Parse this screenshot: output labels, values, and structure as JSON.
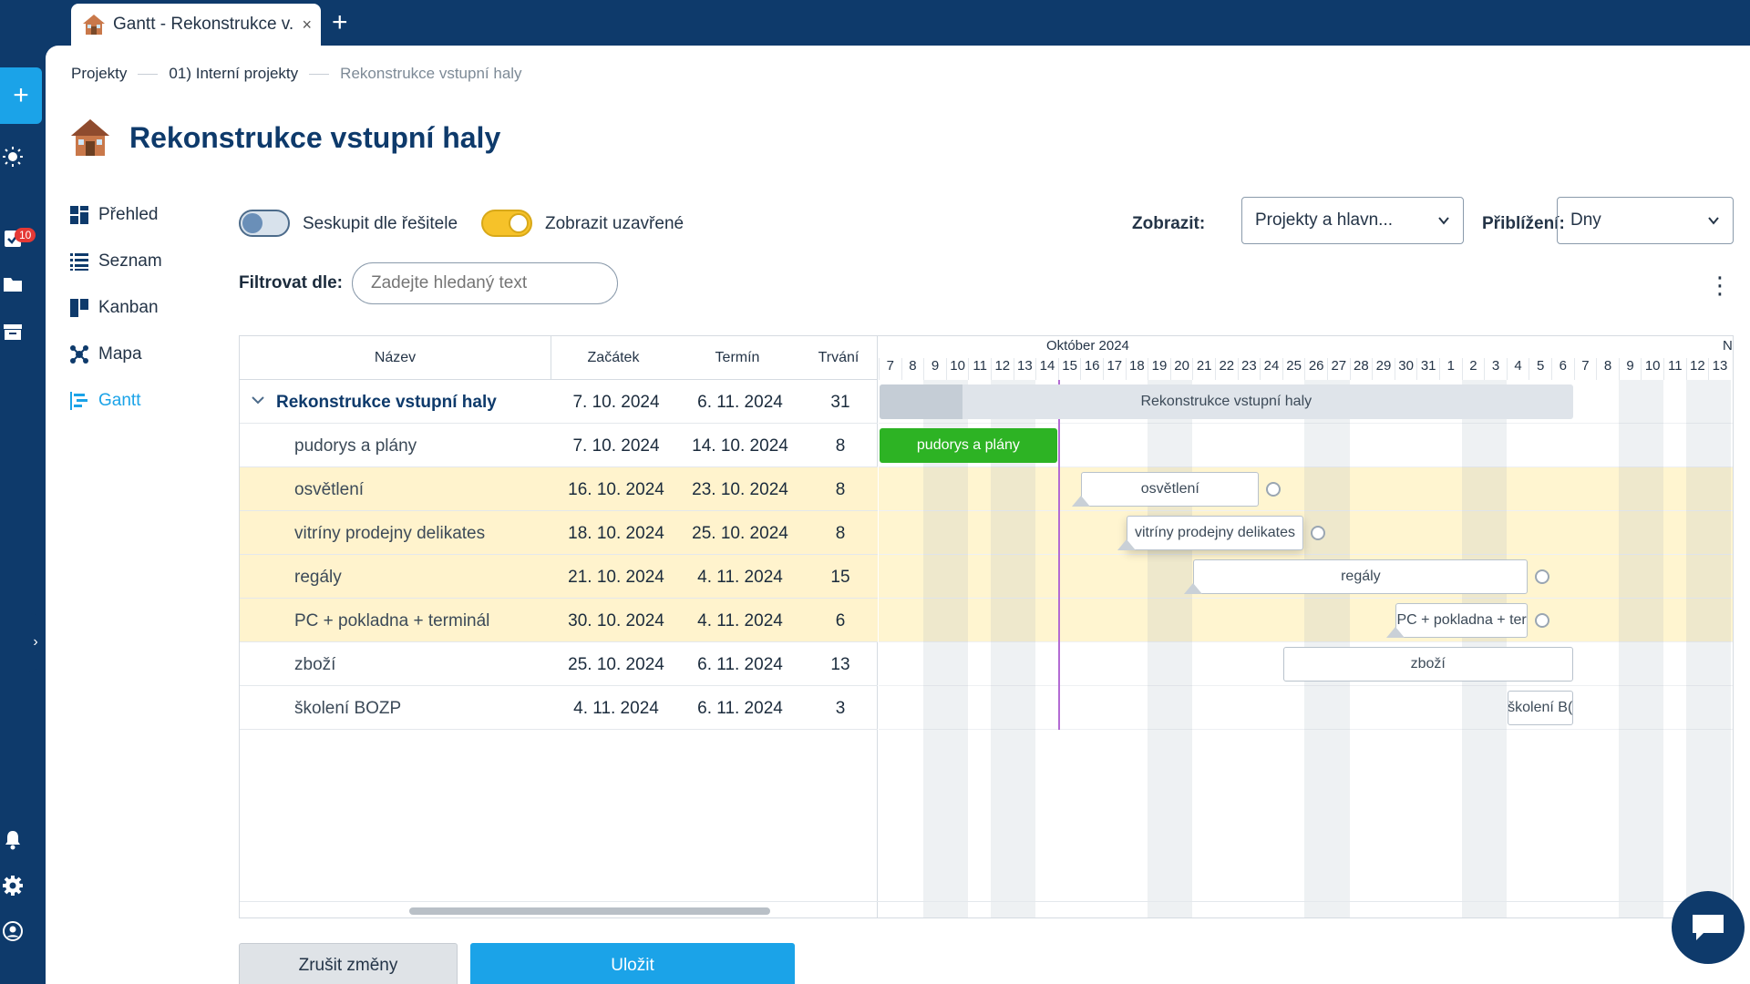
{
  "browser_tab": {
    "title": "Gantt - Rekonstrukce v.",
    "icon": "house-icon",
    "close": "×",
    "new_tab": "+"
  },
  "rail": {
    "add_label": "+",
    "items": [
      {
        "icon": "sun-icon"
      },
      {
        "icon": "tasks-icon",
        "badge": "10"
      },
      {
        "icon": "folder-icon"
      },
      {
        "icon": "archive-icon"
      },
      {
        "icon": "bell-icon"
      },
      {
        "icon": "gear-icon"
      },
      {
        "icon": "user-icon"
      }
    ],
    "collapse_label": "›"
  },
  "breadcrumb": [
    "Projekty",
    "01) Interní projekty",
    "Rekonstrukce vstupní haly"
  ],
  "page_title": "Rekonstrukce vstupní haly",
  "side_nav": [
    {
      "label": "Přehled",
      "icon": "overview-icon",
      "active": false
    },
    {
      "label": "Seznam",
      "icon": "list-icon",
      "active": false
    },
    {
      "label": "Kanban",
      "icon": "kanban-icon",
      "active": false
    },
    {
      "label": "Mapa",
      "icon": "map-icon",
      "active": false
    },
    {
      "label": "Gantt",
      "icon": "gantt-icon",
      "active": true
    }
  ],
  "controls": {
    "group_by_assignee": {
      "label": "Seskupit dle řešitele",
      "on": false
    },
    "show_closed": {
      "label": "Zobrazit uzavřené",
      "on": true
    },
    "show_label": "Zobrazit:",
    "show_value": "Projekty a hlavn...",
    "zoom_label": "Přiblížení:",
    "zoom_value": "Dny",
    "filter_label": "Filtrovat dle:",
    "filter_placeholder": "Zadejte hledaný text",
    "more_label": "⋮"
  },
  "table": {
    "columns": [
      "Název",
      "Začátek",
      "Termín",
      "Trvání"
    ],
    "rows": [
      {
        "name": "Rekonstrukce vstupní haly",
        "start": "7. 10. 2024",
        "end": "6. 11. 2024",
        "duration": "31",
        "parent": true,
        "highlight": false
      },
      {
        "name": "pudorys a plány",
        "start": "7. 10. 2024",
        "end": "14. 10. 2024",
        "duration": "8",
        "parent": false,
        "highlight": false
      },
      {
        "name": "osvětlení",
        "start": "16. 10. 2024",
        "end": "23. 10. 2024",
        "duration": "8",
        "parent": false,
        "highlight": true
      },
      {
        "name": "vitríny prodejny delikates",
        "start": "18. 10. 2024",
        "end": "25. 10. 2024",
        "duration": "8",
        "parent": false,
        "highlight": true
      },
      {
        "name": "regály",
        "start": "21. 10. 2024",
        "end": "4. 11. 2024",
        "duration": "15",
        "parent": false,
        "highlight": true
      },
      {
        "name": "PC + pokladna + terminál",
        "start": "30. 10. 2024",
        "end": "4. 11. 2024",
        "duration": "6",
        "parent": false,
        "highlight": true
      },
      {
        "name": "zboží",
        "start": "25. 10. 2024",
        "end": "6. 11. 2024",
        "duration": "13",
        "parent": false,
        "highlight": false
      },
      {
        "name": "školení BOZP",
        "start": "4. 11. 2024",
        "end": "6. 11. 2024",
        "duration": "3",
        "parent": false,
        "highlight": false
      }
    ]
  },
  "timeline": {
    "month_label": "Október 2024",
    "next_month_label": "N",
    "days": [
      "7",
      "8",
      "9",
      "10",
      "11",
      "12",
      "13",
      "14",
      "15",
      "16",
      "17",
      "18",
      "19",
      "20",
      "21",
      "22",
      "23",
      "24",
      "25",
      "26",
      "27",
      "28",
      "29",
      "30",
      "31",
      "1",
      "2",
      "3",
      "4",
      "5",
      "6",
      "7",
      "8",
      "9",
      "10",
      "11",
      "12",
      "13"
    ],
    "weekend_days": [
      "12",
      "13",
      "19",
      "20",
      "26",
      "27",
      "2",
      "3",
      "9",
      "10"
    ],
    "today_after_day": "15",
    "bars": [
      {
        "label": "Rekonstrukce vstupní haly",
        "start_day": 0,
        "days": 31,
        "style": "summary",
        "progress": 0.12
      },
      {
        "label": "pudorys a plány",
        "start_day": 0,
        "days": 8,
        "style": "green"
      },
      {
        "label": "osvětlení",
        "start_day": 9,
        "days": 8,
        "style": "task"
      },
      {
        "label": "vitríny prodejny delikates",
        "start_day": 11,
        "days": 8,
        "style": "task",
        "hover": true
      },
      {
        "label": "regály",
        "start_day": 14,
        "days": 15,
        "style": "task"
      },
      {
        "label": "PC + pokladna + ter",
        "start_day": 23,
        "days": 6,
        "style": "task"
      },
      {
        "label": "zboží",
        "start_day": 18,
        "days": 13,
        "style": "task"
      },
      {
        "label": "školení B(",
        "start_day": 28,
        "days": 3,
        "style": "task"
      }
    ]
  },
  "buttons": {
    "cancel": "Zrušit změny",
    "save": "Uložit"
  },
  "colors": {
    "accent": "#1ba3e8",
    "navy": "#0e3a6b",
    "highlight": "#fff3cd",
    "done": "#2db324",
    "today": "#b36bd4"
  }
}
